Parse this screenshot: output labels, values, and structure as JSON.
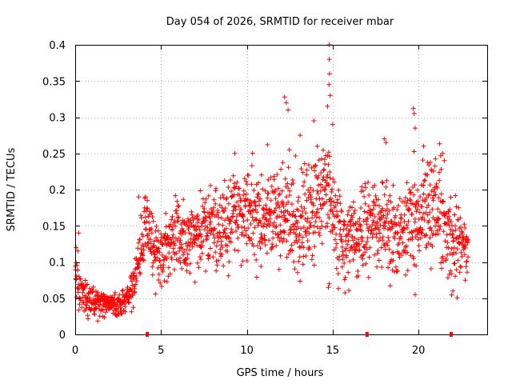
{
  "chart_data": {
    "type": "scatter",
    "title": "Day 054 of 2026, SRMTID for receiver mbar",
    "xlabel": "GPS time / hours",
    "ylabel": "SRMTID / TECUs",
    "xlim": [
      0,
      24
    ],
    "ylim": [
      0,
      0.4
    ],
    "xticks": [
      "0",
      "5",
      "10",
      "15",
      "20"
    ],
    "xtick_values": [
      0,
      5,
      10,
      15,
      20
    ],
    "yticks": [
      "0",
      "0.05",
      "0.1",
      "0.15",
      "0.2",
      "0.25",
      "0.3",
      "0.35",
      "0.4"
    ],
    "ytick_values": [
      0,
      0.05,
      0.1,
      0.15,
      0.2,
      0.25,
      0.3,
      0.35,
      0.4
    ],
    "grid": true,
    "marker": "+",
    "color": "#ff0000",
    "trend": [
      [
        0.0,
        0.1
      ],
      [
        0.2,
        0.07
      ],
      [
        0.5,
        0.05
      ],
      [
        1.0,
        0.045
      ],
      [
        1.5,
        0.043
      ],
      [
        2.0,
        0.045
      ],
      [
        2.5,
        0.04
      ],
      [
        3.0,
        0.05
      ],
      [
        3.4,
        0.07
      ],
      [
        3.7,
        0.11
      ],
      [
        4.0,
        0.14
      ],
      [
        4.3,
        0.15
      ],
      [
        4.6,
        0.11
      ],
      [
        5.0,
        0.11
      ],
      [
        5.5,
        0.13
      ],
      [
        6.0,
        0.14
      ],
      [
        6.5,
        0.13
      ],
      [
        7.0,
        0.14
      ],
      [
        8.0,
        0.15
      ],
      [
        9.0,
        0.16
      ],
      [
        9.5,
        0.17
      ],
      [
        10.0,
        0.17
      ],
      [
        11.0,
        0.16
      ],
      [
        12.0,
        0.17
      ],
      [
        12.5,
        0.16
      ],
      [
        13.0,
        0.15
      ],
      [
        14.0,
        0.18
      ],
      [
        14.5,
        0.2
      ],
      [
        15.0,
        0.17
      ],
      [
        15.5,
        0.13
      ],
      [
        16.0,
        0.13
      ],
      [
        17.0,
        0.15
      ],
      [
        18.0,
        0.15
      ],
      [
        19.0,
        0.14
      ],
      [
        20.0,
        0.16
      ],
      [
        21.0,
        0.18
      ],
      [
        22.0,
        0.13
      ],
      [
        22.9,
        0.12
      ]
    ],
    "spread": [
      [
        0.0,
        0.03
      ],
      [
        0.3,
        0.02
      ],
      [
        1.0,
        0.012
      ],
      [
        3.0,
        0.012
      ],
      [
        3.5,
        0.025
      ],
      [
        4.5,
        0.03
      ],
      [
        7.0,
        0.035
      ],
      [
        9.0,
        0.04
      ],
      [
        12.0,
        0.045
      ],
      [
        14.5,
        0.05
      ],
      [
        16.0,
        0.035
      ],
      [
        19.0,
        0.045
      ],
      [
        21.0,
        0.05
      ],
      [
        22.9,
        0.03
      ]
    ],
    "highlights": [
      [
        12.2,
        0.328
      ],
      [
        12.3,
        0.32
      ],
      [
        12.4,
        0.31
      ],
      [
        14.8,
        0.4
      ],
      [
        14.8,
        0.38
      ],
      [
        14.82,
        0.36
      ],
      [
        14.78,
        0.345
      ],
      [
        14.85,
        0.33
      ],
      [
        14.7,
        0.315
      ],
      [
        13.9,
        0.295
      ],
      [
        19.7,
        0.312
      ],
      [
        19.75,
        0.305
      ],
      [
        19.8,
        0.285
      ],
      [
        18.0,
        0.27
      ],
      [
        18.1,
        0.265
      ],
      [
        20.3,
        0.26
      ],
      [
        9.3,
        0.25
      ],
      [
        11.2,
        0.262
      ],
      [
        13.1,
        0.275
      ],
      [
        14.1,
        0.26
      ],
      [
        15.0,
        0.29
      ],
      [
        21.4,
        0.25
      ],
      [
        21.5,
        0.24
      ],
      [
        3.7,
        0.19
      ],
      [
        4.1,
        0.19
      ],
      [
        4.2,
        0.185
      ],
      [
        0.2,
        0.14
      ],
      [
        14.8,
        0.07
      ],
      [
        14.75,
        0.065
      ],
      [
        19.8,
        0.055
      ],
      [
        22.0,
        0.06
      ],
      [
        0.05,
        0.12
      ]
    ],
    "axis_markers_x": [
      4.2,
      17.0,
      21.9
    ]
  }
}
